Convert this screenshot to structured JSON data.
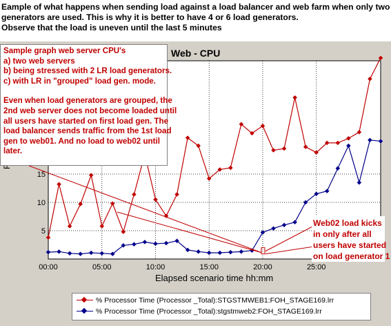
{
  "header": {
    "lines": [
      "Eample of what happens when sending load against a load balancer and web farm when only two load",
      "generators are used. This is why it is better to have 4 or 6 load generators.",
      "Observe that the load is uneven until the last 5 minutes"
    ]
  },
  "callouts": {
    "left": [
      "Sample graph web server CPU's",
      "a) two web servers",
      "b) being stressed with 2 LR load generators.",
      "c) with LR in \"grouped\" load gen. mode.",
      "",
      "Even when load generators are grouped,  the",
      "2nd web server does not become loaded until",
      "all users have started on first load gen. The",
      "load balancer sends traffic from the 1st load",
      "gen to web01. And no load to web02 until",
      "later."
    ],
    "right": [
      "Web02 load kicks",
      "in only after all",
      "users have started",
      "on load generator 1"
    ]
  },
  "colors": {
    "series1": "#c00000",
    "series2": "#00008b",
    "annotation": "#c00000",
    "frame": "#d4d0c8"
  },
  "chart_data": {
    "type": "line",
    "title": "Web - CPU",
    "xlabel": "Elapsed scenario time hh:mm",
    "ylabel": "Res",
    "x_ticks": [
      "00:00",
      "05:00",
      "10:00",
      "15:00",
      "20:00",
      "25:00"
    ],
    "y_ticks": [
      "5",
      "10",
      "15"
    ],
    "xlim": [
      0,
      31
    ],
    "ylim": [
      0,
      35
    ],
    "series": [
      {
        "name": "% Processor Time (Processor _Total):STGSTMWEB1:FOH_STAGE169.lrr",
        "x": [
          0,
          1,
          2,
          3,
          4,
          5,
          6,
          7,
          8,
          9,
          10,
          11,
          12,
          13,
          14,
          15,
          16,
          17,
          18,
          19,
          20,
          21,
          22,
          23,
          24,
          25,
          26,
          27,
          28,
          29,
          30,
          31
        ],
        "values": [
          3.8,
          13.2,
          5.8,
          9.7,
          14.8,
          5.8,
          9.8,
          4.8,
          11.4,
          18.5,
          10.5,
          7.6,
          11.4,
          21.4,
          20.0,
          14.2,
          15.8,
          16.1,
          23.8,
          22.2,
          23.5,
          19.2,
          19.5,
          28.5,
          19.8,
          18.8,
          20.5,
          20.5,
          21.3,
          22.4,
          31.8,
          35.5
        ]
      },
      {
        "name": "% Processor Time (Processor _Total):stgstmweb2:FOH_STAGE169.lrr",
        "x": [
          0,
          1,
          2,
          3,
          4,
          5,
          6,
          7,
          8,
          9,
          10,
          11,
          12,
          13,
          14,
          15,
          16,
          17,
          18,
          19,
          20,
          21,
          22,
          23,
          24,
          25,
          26,
          27,
          28,
          29,
          30,
          31
        ],
        "values": [
          1.2,
          1.3,
          1.0,
          0.9,
          1.1,
          1.0,
          0.9,
          2.4,
          2.6,
          3.0,
          2.7,
          2.8,
          3.2,
          1.6,
          1.3,
          1.1,
          1.1,
          1.2,
          1.3,
          1.5,
          4.7,
          5.4,
          6.0,
          6.5,
          10.0,
          11.5,
          12.0,
          16.0,
          20.0,
          13.5,
          21.0,
          20.8
        ]
      }
    ]
  }
}
